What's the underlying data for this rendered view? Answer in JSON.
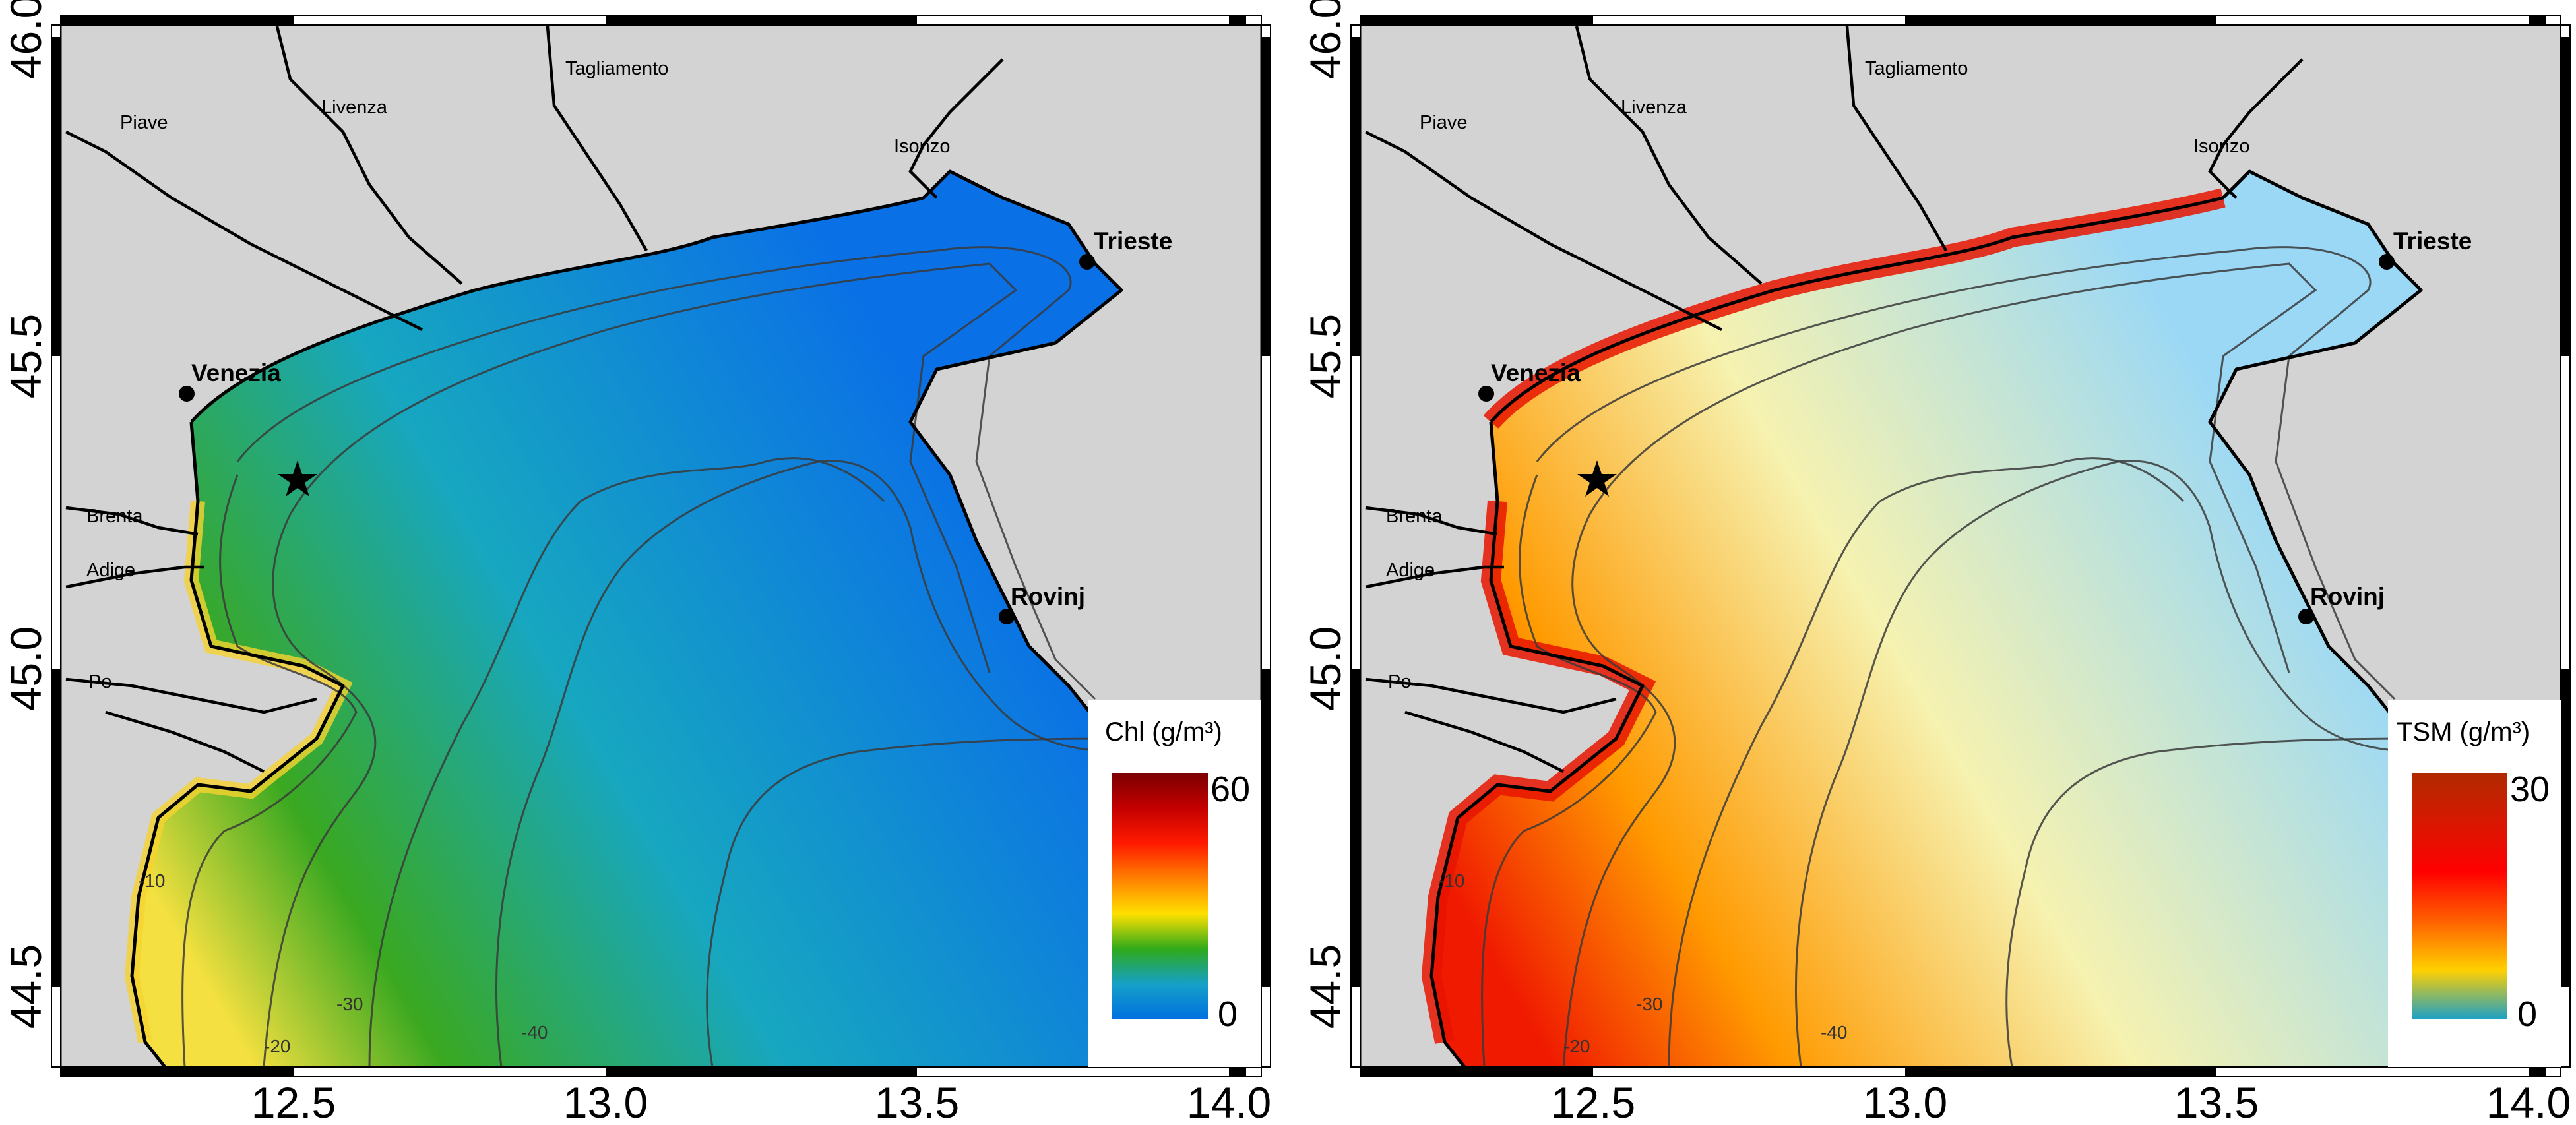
{
  "panels": [
    {
      "variable": "Chl",
      "colorbar_label": "Chl (g/m³)",
      "colorbar_max": "60",
      "colorbar_min": "0",
      "colorbar_colors": [
        "#7a0000",
        "#c40000",
        "#ff1a00",
        "#ff8000",
        "#ffe000",
        "#2faa1a",
        "#15a0c8",
        "#0070e0"
      ],
      "sea_colors": {
        "coast": "#f4e040",
        "near": "#3aa820",
        "mid": "#17a7c0",
        "far": "#0a70e6"
      }
    },
    {
      "variable": "TSM",
      "colorbar_label": "TSM (g/m³)",
      "colorbar_max": "30",
      "colorbar_min": "0",
      "colorbar_colors": [
        "#b02a00",
        "#d81800",
        "#ff0000",
        "#ff6000",
        "#ffd000",
        "#1aa0c8"
      ],
      "sea_colors": {
        "coast": "#f01a00",
        "near": "#ff9a00",
        "mid": "#f6f2b0",
        "far": "#9ad8f6"
      }
    }
  ],
  "axes": {
    "x_ticks": [
      "12.5",
      "13.0",
      "13.5",
      "14.0"
    ],
    "y_ticks": [
      "46.0",
      "45.5",
      "45.0",
      "44.5"
    ],
    "x_range": [
      12.15,
      14.0
    ],
    "y_range": [
      44.38,
      46.02
    ]
  },
  "rivers": [
    "Piave",
    "Livenza",
    "Tagliamento",
    "Isonzo",
    "Brenta",
    "Adige",
    "Po"
  ],
  "cities": [
    "Trieste",
    "Venezia",
    "Rovinj"
  ],
  "depth_labels": [
    "-10",
    "-20",
    "-30",
    "-40"
  ],
  "land_color": "#d3d3d3"
}
